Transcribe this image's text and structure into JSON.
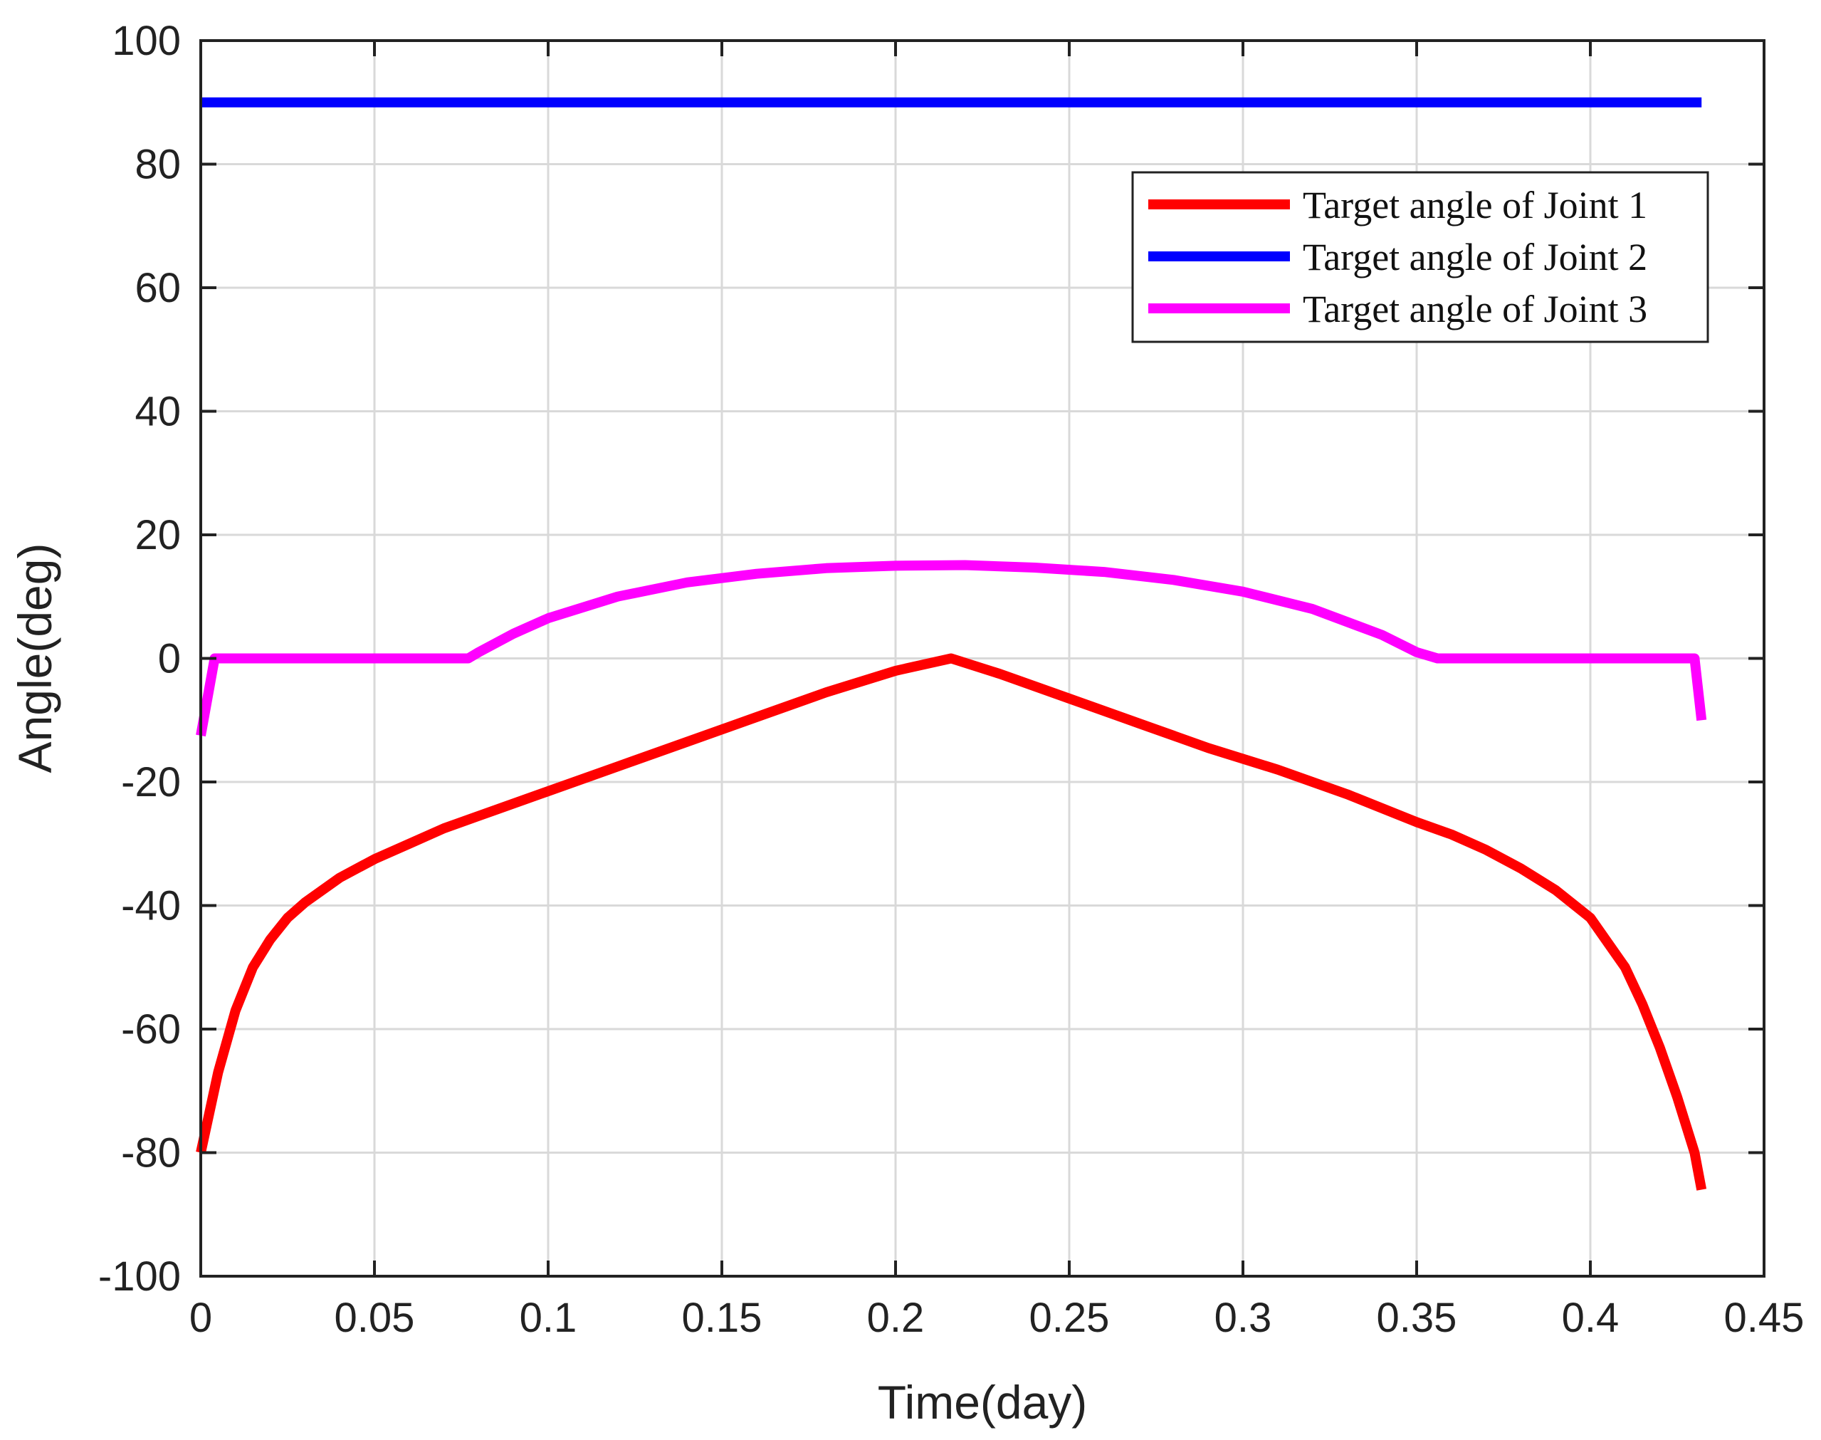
{
  "chart_data": {
    "type": "line",
    "title": "",
    "xlabel": "Time(day)",
    "ylabel": "Angle(deg)",
    "xlim": [
      0,
      0.45
    ],
    "ylim": [
      -100,
      100
    ],
    "xticks": [
      "0",
      "0.05",
      "0.1",
      "0.15",
      "0.2",
      "0.25",
      "0.3",
      "0.35",
      "0.4",
      "0.45"
    ],
    "yticks": [
      "-100",
      "-80",
      "-60",
      "-40",
      "-20",
      "0",
      "20",
      "40",
      "60",
      "80",
      "100"
    ],
    "grid": true,
    "legend_position": "top-right",
    "series": [
      {
        "name": "Target angle of Joint 1",
        "color": "#ff0000",
        "x": [
          0,
          0.005,
          0.01,
          0.015,
          0.02,
          0.025,
          0.03,
          0.04,
          0.05,
          0.06,
          0.07,
          0.08,
          0.1,
          0.12,
          0.14,
          0.16,
          0.18,
          0.2,
          0.216,
          0.23,
          0.25,
          0.27,
          0.29,
          0.31,
          0.33,
          0.35,
          0.36,
          0.37,
          0.38,
          0.39,
          0.4,
          0.41,
          0.415,
          0.42,
          0.425,
          0.43,
          0.432
        ],
        "y": [
          -80,
          -67,
          -57,
          -50,
          -45.5,
          -42,
          -39.5,
          -35.5,
          -32.5,
          -30,
          -27.5,
          -25.5,
          -21.5,
          -17.5,
          -13.5,
          -9.5,
          -5.5,
          -2,
          0,
          -2.5,
          -6.5,
          -10.5,
          -14.5,
          -18,
          -22,
          -26.5,
          -28.5,
          -31,
          -34,
          -37.5,
          -42,
          -50,
          -56,
          -63,
          -71,
          -80,
          -86
        ]
      },
      {
        "name": "Target angle of Joint 2",
        "color": "#0000ff",
        "x": [
          0,
          0.432
        ],
        "y": [
          90,
          90
        ]
      },
      {
        "name": "Target angle of Joint 3",
        "color": "#ff00ff",
        "x": [
          0,
          0.004,
          0.077,
          0.08,
          0.09,
          0.1,
          0.12,
          0.14,
          0.16,
          0.18,
          0.2,
          0.22,
          0.24,
          0.26,
          0.28,
          0.3,
          0.32,
          0.34,
          0.35,
          0.356,
          0.43,
          0.432
        ],
        "y": [
          -12.5,
          0,
          0,
          1,
          4,
          6.5,
          10,
          12.3,
          13.7,
          14.6,
          15,
          15.1,
          14.7,
          14,
          12.7,
          10.8,
          8,
          3.8,
          1,
          0,
          0,
          -10
        ]
      }
    ]
  }
}
